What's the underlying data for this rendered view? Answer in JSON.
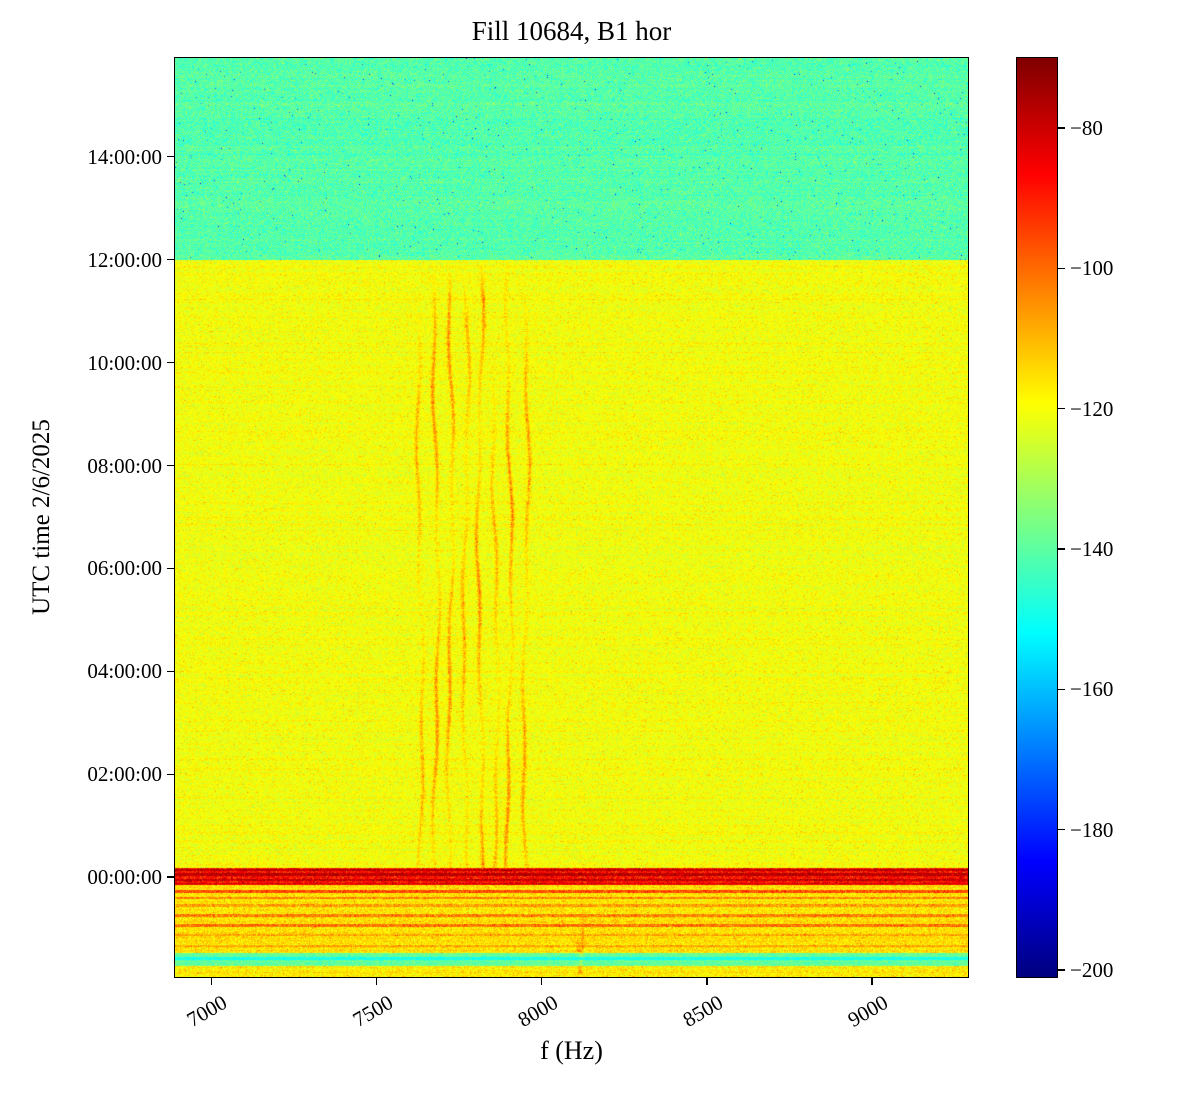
{
  "chart_data": {
    "type": "heatmap",
    "title": "Fill 10684, B1 hor",
    "xlabel": "f (Hz)",
    "ylabel": "UTC time 2/6/2025",
    "noise_seed": 1337,
    "x_axis": {
      "unit": "Hz",
      "range": [
        6890,
        9290
      ],
      "ticks": [
        {
          "hz": 7000,
          "label": "7000"
        },
        {
          "hz": 7500,
          "label": "7500"
        },
        {
          "hz": 8000,
          "label": "8000"
        },
        {
          "hz": 8500,
          "label": "8500"
        },
        {
          "hz": 9000,
          "label": "9000"
        }
      ]
    },
    "y_axis": {
      "unit": "hours relative to 00:00:00 UTC 2/6/2025",
      "range": [
        -1.94,
        15.92
      ],
      "ticks": [
        {
          "hour": 14,
          "label": "14:00:00"
        },
        {
          "hour": 12,
          "label": "12:00:00"
        },
        {
          "hour": 10,
          "label": "10:00:00"
        },
        {
          "hour": 8,
          "label": "08:00:00"
        },
        {
          "hour": 6,
          "label": "06:00:00"
        },
        {
          "hour": 4,
          "label": "04:00:00"
        },
        {
          "hour": 2,
          "label": "02:00:00"
        },
        {
          "hour": 0,
          "label": "00:00:00"
        }
      ]
    },
    "colorbar": {
      "colormap": "jet",
      "unit": "dB",
      "vmin": -201,
      "vmax": -70,
      "ticks": [
        {
          "db": -80,
          "label": "−80"
        },
        {
          "db": -100,
          "label": "−100"
        },
        {
          "db": -120,
          "label": "−120"
        },
        {
          "db": -140,
          "label": "−140"
        },
        {
          "db": -160,
          "label": "−160"
        },
        {
          "db": -180,
          "label": "−180"
        },
        {
          "db": -200,
          "label": "−200"
        }
      ]
    },
    "regions": [
      {
        "name": "post-fill-green-noise",
        "t": [
          12.0,
          15.92
        ],
        "base": -141,
        "sigma": 4.0,
        "dropProb": 0.004,
        "dropMin": 15,
        "dropMax": 42
      },
      {
        "name": "fill-yellow-noise",
        "t": [
          0.18,
          12.0
        ],
        "base": -120.5,
        "sigma": 3.0,
        "spikeProb": 0.03,
        "spikeDb": 6
      },
      {
        "name": "pre-fill-orange-yellow",
        "t": [
          -1.48,
          0.18
        ],
        "base": -116,
        "sigma": 3.8,
        "spikeProb": 0.05,
        "spikeDb": 6
      },
      {
        "name": "quiet-green-band",
        "t": [
          -1.72,
          -1.48
        ],
        "base": -139,
        "sigma": 3.2
      },
      {
        "name": "bottom-yellow",
        "t": [
          -1.94,
          -1.72
        ],
        "base": -117,
        "sigma": 3.8,
        "spikeProb": 0.04,
        "spikeDb": 6
      }
    ],
    "horizontal_bands": [
      {
        "t": 0.02,
        "half": 0.155,
        "db": -88,
        "sigma": 6
      },
      {
        "t": 0.14,
        "half": 0.02,
        "db": -79,
        "sigma": 4
      },
      {
        "t": 0.05,
        "half": 0.022,
        "db": -78,
        "sigma": 4
      },
      {
        "t": -0.06,
        "half": 0.018,
        "db": -80,
        "sigma": 4
      },
      {
        "t": -0.13,
        "half": 0.015,
        "db": -84,
        "sigma": 4
      },
      {
        "t": -0.27,
        "half": 0.028,
        "db": -96,
        "sigma": 5
      },
      {
        "t": -0.4,
        "half": 0.022,
        "db": -104,
        "sigma": 5
      },
      {
        "t": -0.55,
        "half": 0.02,
        "db": -107,
        "sigma": 5
      },
      {
        "t": -0.74,
        "half": 0.026,
        "db": -103,
        "sigma": 5
      },
      {
        "t": -0.94,
        "half": 0.03,
        "db": -101,
        "sigma": 5
      },
      {
        "t": -1.13,
        "half": 0.02,
        "db": -108,
        "sigma": 5
      },
      {
        "t": -1.33,
        "half": 0.02,
        "db": -109,
        "sigma": 5
      },
      {
        "t": -1.58,
        "half": 0.03,
        "db": -149,
        "sigma": 2,
        "mode": "set"
      }
    ],
    "vertical_lines": [
      {
        "f": 7632,
        "t": [
          0.15,
          11.2
        ],
        "boost": 9
      },
      {
        "f": 7680,
        "t": [
          0.15,
          12.0
        ],
        "boost": 13
      },
      {
        "f": 7724,
        "t": [
          0.15,
          12.0
        ],
        "boost": 12
      },
      {
        "f": 7770,
        "t": [
          0.15,
          11.5
        ],
        "boost": 10
      },
      {
        "f": 7814,
        "t": [
          0.15,
          12.0
        ],
        "boost": 13
      },
      {
        "f": 7860,
        "t": [
          0.15,
          10.3
        ],
        "boost": 9
      },
      {
        "f": 7902,
        "t": [
          0.15,
          12.0
        ],
        "boost": 13
      },
      {
        "f": 7952,
        "t": [
          0.15,
          11.8
        ],
        "boost": 11
      },
      {
        "f": 8060,
        "t": [
          -0.95,
          -0.2
        ],
        "boost": 10
      },
      {
        "f": 8122,
        "t": [
          -1.9,
          -0.22
        ],
        "boost": 7
      },
      {
        "f": 8122,
        "t": [
          -1.45,
          -1.18
        ],
        "boost": 26
      },
      {
        "f": 8230,
        "t": [
          -0.85,
          -0.35
        ],
        "boost": 8
      }
    ]
  }
}
